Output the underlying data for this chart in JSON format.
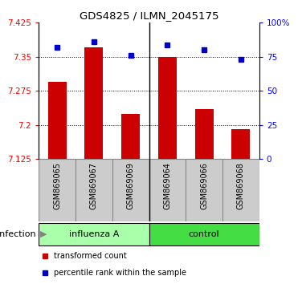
{
  "title": "GDS4825 / ILMN_2045175",
  "samples": [
    "GSM869065",
    "GSM869067",
    "GSM869069",
    "GSM869064",
    "GSM869066",
    "GSM869068"
  ],
  "bar_values": [
    7.295,
    7.37,
    7.225,
    7.35,
    7.235,
    7.19
  ],
  "percentile_values": [
    82,
    86,
    76,
    84,
    80,
    73
  ],
  "ymin": 7.125,
  "ymax": 7.425,
  "yticks": [
    7.125,
    7.2,
    7.275,
    7.35,
    7.425
  ],
  "ytick_labels": [
    "7.125",
    "7.2",
    "7.275",
    "7.35",
    "7.425"
  ],
  "y2min": 0,
  "y2max": 100,
  "y2ticks": [
    0,
    25,
    50,
    75,
    100
  ],
  "y2tick_labels": [
    "0",
    "25",
    "50",
    "75",
    "100%"
  ],
  "bar_color": "#cc0000",
  "percentile_color": "#0000cc",
  "groups": [
    {
      "label": "influenza A",
      "count": 3,
      "color": "#aaffaa"
    },
    {
      "label": "control",
      "count": 3,
      "color": "#44dd44"
    }
  ],
  "group_label": "infection",
  "legend_items": [
    {
      "color": "#cc0000",
      "label": "transformed count"
    },
    {
      "color": "#0000cc",
      "label": "percentile rank within the sample"
    }
  ],
  "bar_width": 0.5,
  "tickbox_color": "#cccccc",
  "tickbox_border": "#888888",
  "separator_color": "black"
}
